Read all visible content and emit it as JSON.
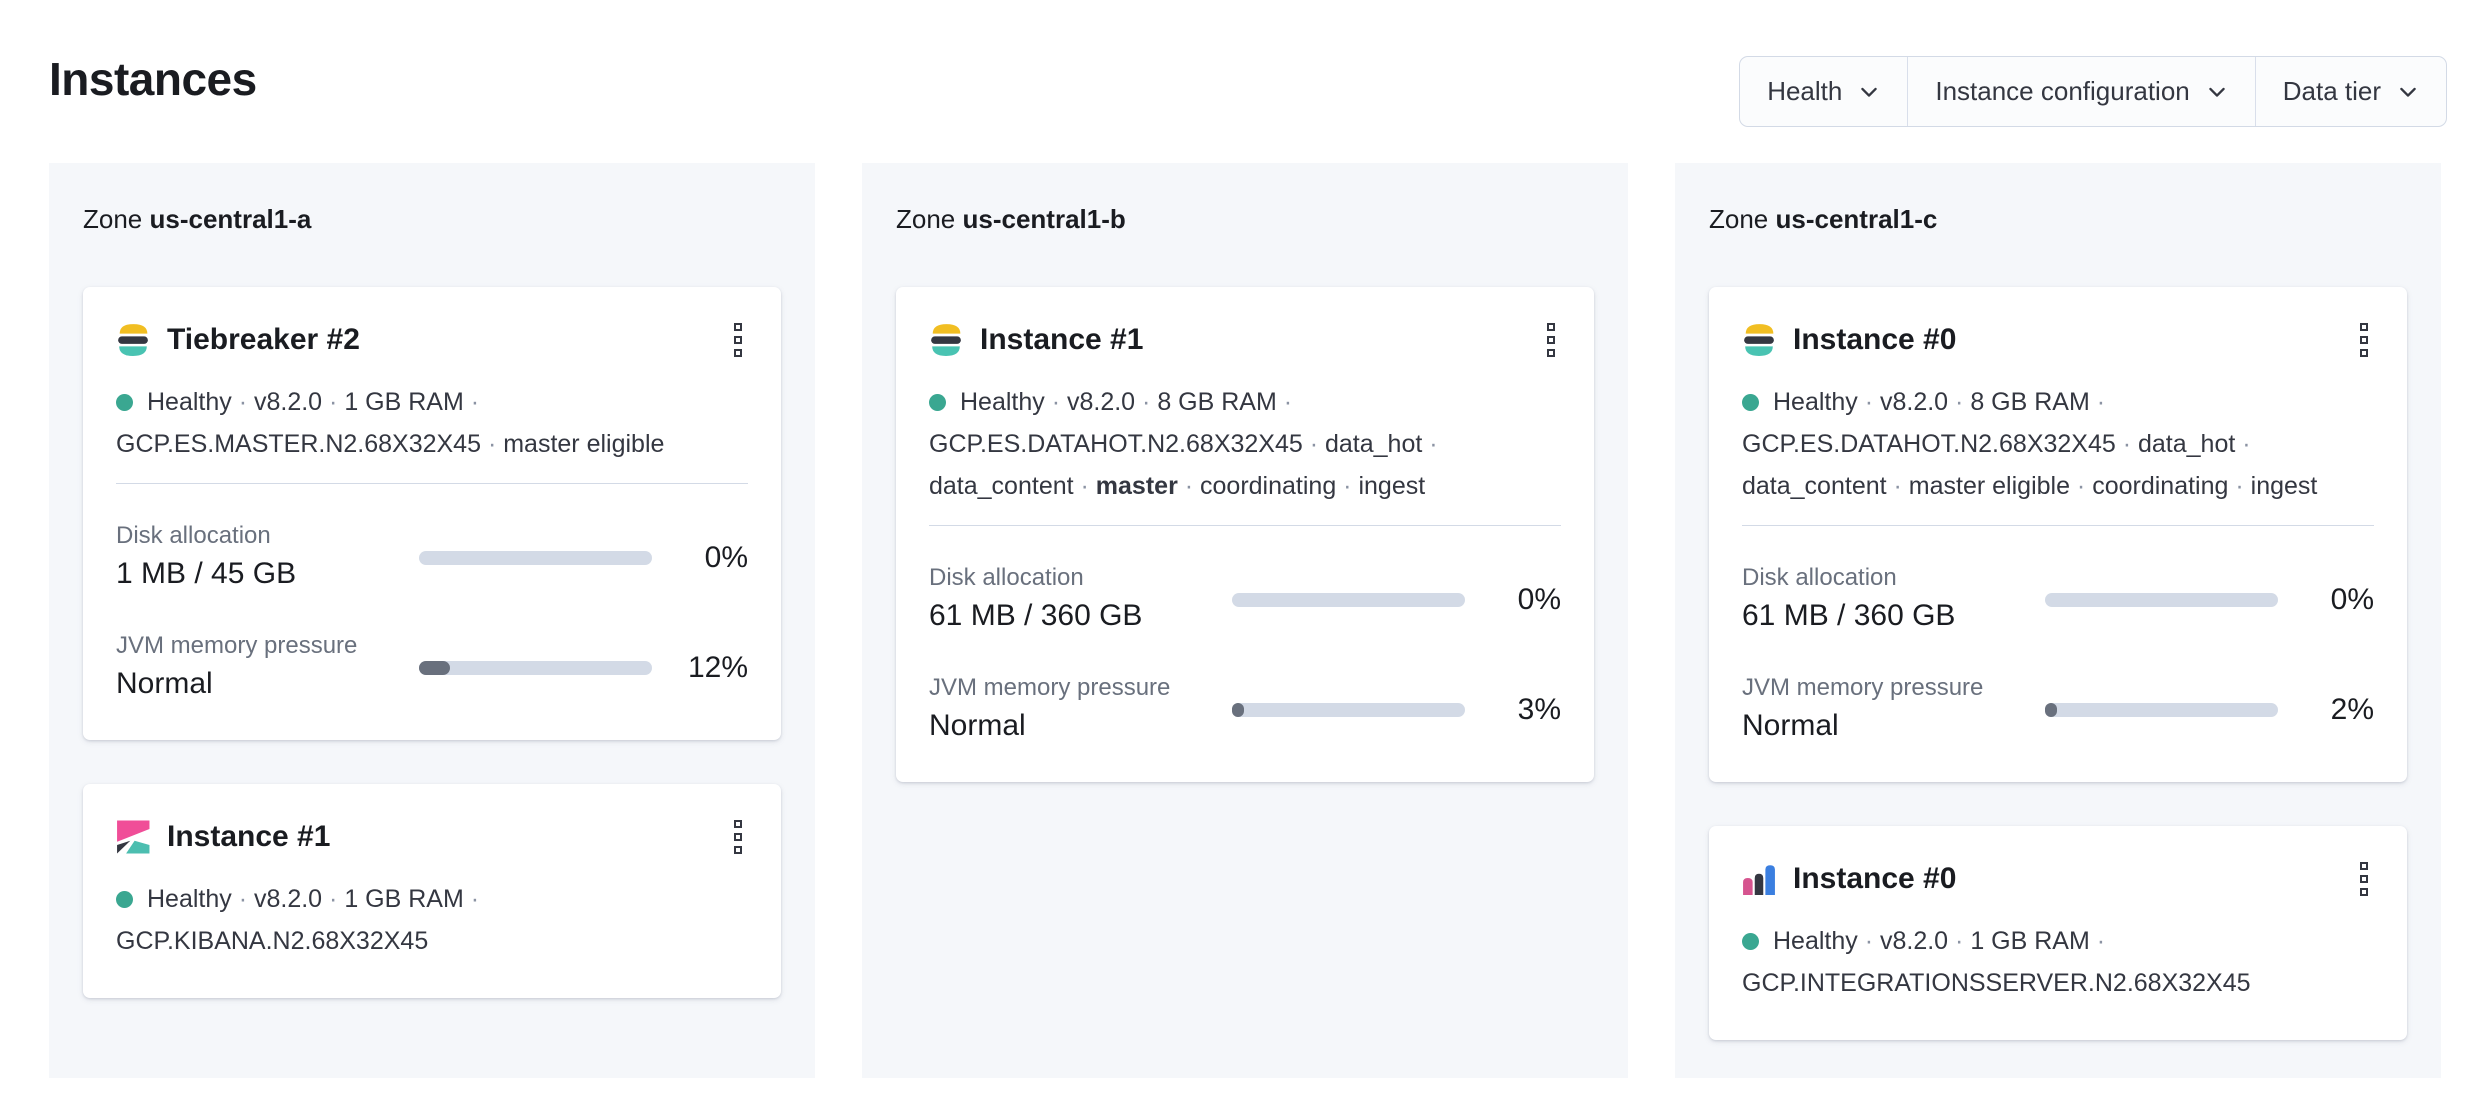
{
  "page": {
    "title": "Instances"
  },
  "filters": [
    {
      "label": "Health"
    },
    {
      "label": "Instance configuration"
    },
    {
      "label": "Data tier"
    }
  ],
  "colors": {
    "healthy_dot": "#3aa791",
    "bar_track": "#d3dae6",
    "bar_fill": "#69707d",
    "zone_panel_bg": "#f5f7fa",
    "elastic_yellow": "#f1be22",
    "elastic_dark": "#343741",
    "elastic_teal": "#49c3b2",
    "kibana_pink": "#f04e98",
    "kibana_dark": "#343741",
    "kibana_teal": "#4cbeb0",
    "integrations_pink": "#d6548f",
    "integrations_dark": "#343741",
    "integrations_blue": "#3b7fe0"
  },
  "zones": [
    {
      "label_prefix": "Zone",
      "name": "us-central1-a",
      "instances": [
        {
          "logo": "elasticsearch",
          "title": "Tiebreaker #2",
          "status_segments": [
            {
              "text": "Healthy"
            },
            {
              "text": "v8.2.0"
            },
            {
              "text": "1 GB RAM"
            },
            {
              "text": "GCP.ES.MASTER.N2.68X32X45"
            },
            {
              "text": "master eligible"
            }
          ],
          "metrics": [
            {
              "label": "Disk allocation",
              "value": "1 MB / 45 GB",
              "percent_label": "0%",
              "fill_percent": 0
            },
            {
              "label": "JVM memory pressure",
              "value": "Normal",
              "percent_label": "12%",
              "fill_percent": 12
            }
          ]
        },
        {
          "logo": "kibana",
          "title": "Instance #1",
          "status_segments": [
            {
              "text": "Healthy"
            },
            {
              "text": "v8.2.0"
            },
            {
              "text": "1 GB RAM"
            },
            {
              "text": "GCP.KIBANA.N2.68X32X45"
            }
          ],
          "metrics": []
        }
      ]
    },
    {
      "label_prefix": "Zone",
      "name": "us-central1-b",
      "instances": [
        {
          "logo": "elasticsearch",
          "title": "Instance #1",
          "status_segments": [
            {
              "text": "Healthy"
            },
            {
              "text": "v8.2.0"
            },
            {
              "text": "8 GB RAM"
            },
            {
              "text": "GCP.ES.DATAHOT.N2.68X32X45"
            },
            {
              "text": "data_hot"
            },
            {
              "text": "data_content"
            },
            {
              "text": "master",
              "bold": true
            },
            {
              "text": "coordinating"
            },
            {
              "text": "ingest"
            }
          ],
          "metrics": [
            {
              "label": "Disk allocation",
              "value": "61 MB / 360 GB",
              "percent_label": "0%",
              "fill_percent": 0
            },
            {
              "label": "JVM memory pressure",
              "value": "Normal",
              "percent_label": "3%",
              "fill_percent": 3
            }
          ]
        }
      ]
    },
    {
      "label_prefix": "Zone",
      "name": "us-central1-c",
      "instances": [
        {
          "logo": "elasticsearch",
          "title": "Instance #0",
          "status_segments": [
            {
              "text": "Healthy"
            },
            {
              "text": "v8.2.0"
            },
            {
              "text": "8 GB RAM"
            },
            {
              "text": "GCP.ES.DATAHOT.N2.68X32X45"
            },
            {
              "text": "data_hot"
            },
            {
              "text": "data_content"
            },
            {
              "text": "master eligible"
            },
            {
              "text": "coordinating"
            },
            {
              "text": "ingest"
            }
          ],
          "metrics": [
            {
              "label": "Disk allocation",
              "value": "61 MB / 360 GB",
              "percent_label": "0%",
              "fill_percent": 0
            },
            {
              "label": "JVM memory pressure",
              "value": "Normal",
              "percent_label": "2%",
              "fill_percent": 2
            }
          ]
        },
        {
          "logo": "integrations-server",
          "title": "Instance #0",
          "status_segments": [
            {
              "text": "Healthy"
            },
            {
              "text": "v8.2.0"
            },
            {
              "text": "1 GB RAM"
            },
            {
              "text": "GCP.INTEGRATIONSSERVER.N2.68X32X45"
            }
          ],
          "metrics": []
        }
      ]
    }
  ]
}
